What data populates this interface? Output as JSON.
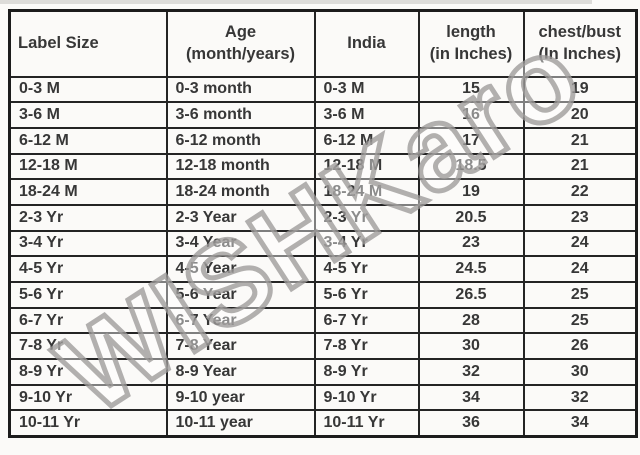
{
  "table": {
    "columns": [
      {
        "lines": [
          "Label Size",
          ""
        ]
      },
      {
        "lines": [
          "Age",
          "(month/years)"
        ]
      },
      {
        "lines": [
          "India",
          ""
        ]
      },
      {
        "lines": [
          "length",
          "(in Inches)"
        ]
      },
      {
        "lines": [
          "chest/bust",
          "(In Inches)"
        ]
      }
    ],
    "rows": [
      [
        "0-3 M",
        "0-3 month",
        "0-3 M",
        "15",
        "19"
      ],
      [
        "3-6 M",
        "3-6 month",
        "3-6 M",
        "16",
        "20"
      ],
      [
        "6-12 M",
        "6-12 month",
        "6-12 M",
        "17",
        "21"
      ],
      [
        "12-18 M",
        "12-18 month",
        "12-18 M",
        "18.5",
        "21"
      ],
      [
        "18-24 M",
        "18-24 month",
        "18-24 M",
        "19",
        "22"
      ],
      [
        "2-3 Yr",
        "2-3 Year",
        "2-3 Yr",
        "20.5",
        "23"
      ],
      [
        "3-4 Yr",
        "3-4 Year",
        "3-4 Yr",
        "23",
        "24"
      ],
      [
        "4-5 Yr",
        "4-5 Year",
        "4-5 Yr",
        "24.5",
        "24"
      ],
      [
        "5-6 Yr",
        "5-6 Year",
        "5-6 Yr",
        "26.5",
        "25"
      ],
      [
        "6-7 Yr",
        "6-7 Year",
        "6-7 Yr",
        "28",
        "25"
      ],
      [
        "7-8 Yr",
        "7-8 Year",
        "7-8 Yr",
        "30",
        "26"
      ],
      [
        "8-9 Yr",
        "8-9 Year",
        "8-9 Yr",
        "32",
        "30"
      ],
      [
        "9-10 Yr",
        "9-10 year",
        "9-10 Yr",
        "34",
        "32"
      ],
      [
        "10-11 Yr",
        "10-11 year",
        "10-11 Yr",
        "36",
        "34"
      ]
    ]
  },
  "watermark": {
    "text": "WISHKaro",
    "color": "#9c9a98"
  },
  "colors": {
    "border": "#1c1c1c",
    "text": "#373737",
    "background": "#fbfaf8"
  }
}
